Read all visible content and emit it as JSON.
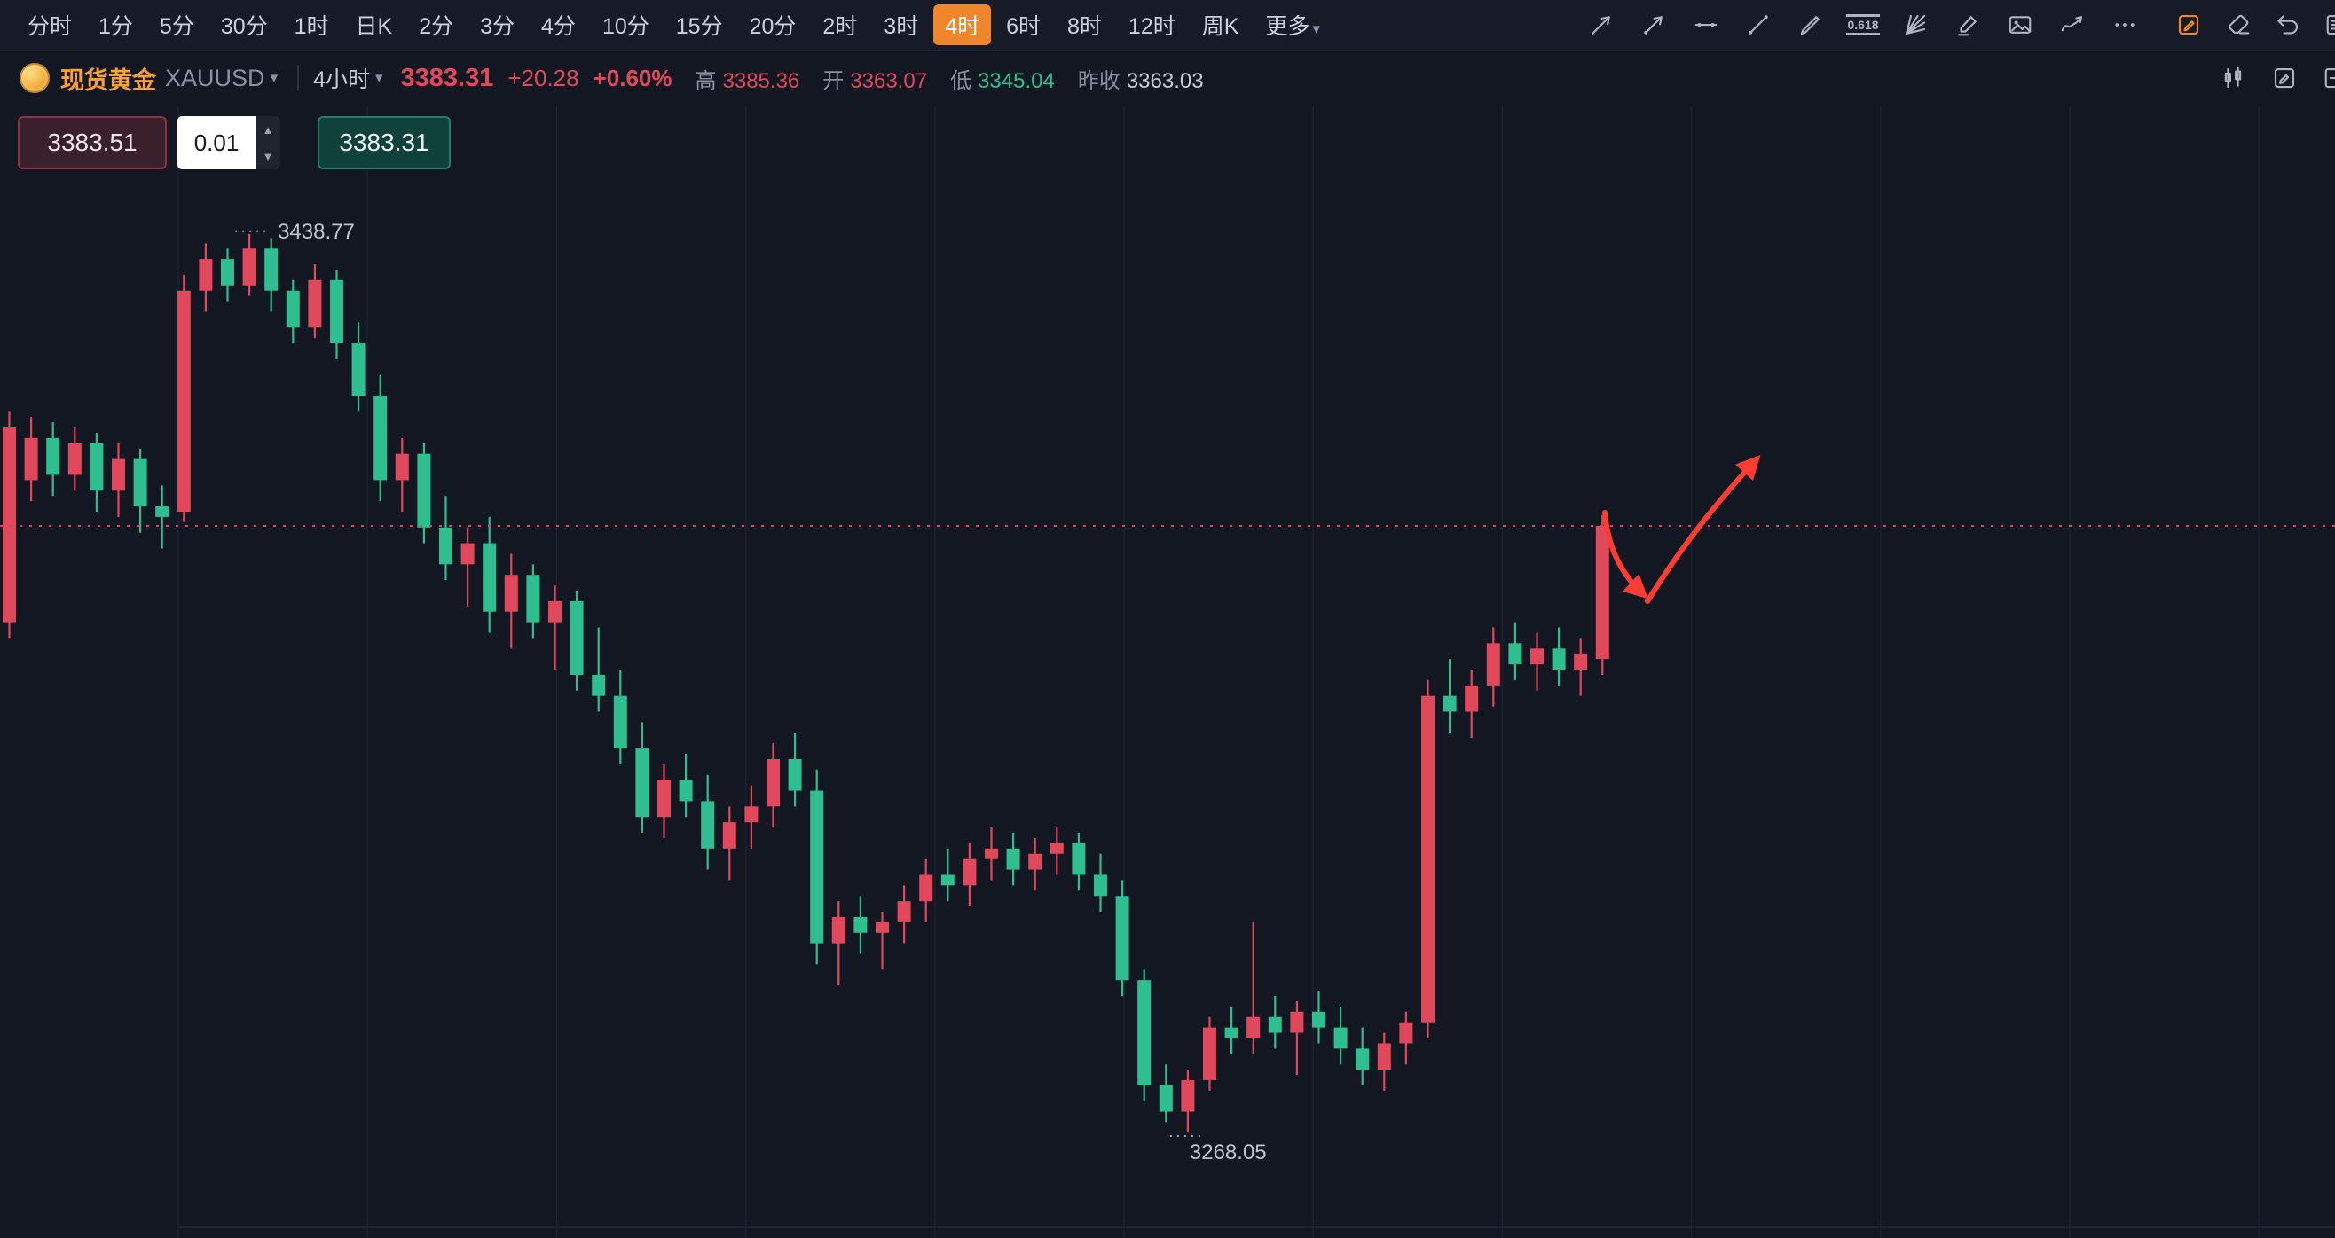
{
  "toolbar": {
    "timeframes": [
      {
        "label": "分时"
      },
      {
        "label": "1分"
      },
      {
        "label": "5分"
      },
      {
        "label": "30分"
      },
      {
        "label": "1时"
      },
      {
        "label": "日K"
      },
      {
        "label": "2分"
      },
      {
        "label": "3分"
      },
      {
        "label": "4分"
      },
      {
        "label": "10分"
      },
      {
        "label": "15分"
      },
      {
        "label": "20分"
      },
      {
        "label": "2时"
      },
      {
        "label": "3时"
      },
      {
        "label": "4时"
      },
      {
        "label": "6时"
      },
      {
        "label": "8时"
      },
      {
        "label": "12时"
      },
      {
        "label": "周K"
      },
      {
        "label": "更多",
        "caret": true
      }
    ],
    "active_timeframe": "4时",
    "tools": [
      {
        "name": "ray-arrow-icon"
      },
      {
        "name": "trend-arrow-icon"
      },
      {
        "name": "horizontal-segment-icon"
      },
      {
        "name": "trend-line-icon"
      },
      {
        "name": "pen-icon"
      },
      {
        "name": "fib-retracement-icon",
        "label": "0.618"
      },
      {
        "name": "gann-fan-icon"
      },
      {
        "name": "marker-icon"
      },
      {
        "name": "image-icon"
      },
      {
        "name": "wave-icon"
      },
      {
        "name": "more-tools-icon"
      }
    ],
    "actions": [
      {
        "name": "edit-square-icon",
        "accent": true
      },
      {
        "name": "eraser-icon"
      },
      {
        "name": "undo-icon"
      },
      {
        "name": "panel-clipped-icon"
      }
    ]
  },
  "ticker": {
    "name": "现货黄金",
    "symbol": "XAUUSD",
    "interval": "4小时",
    "price": "3383.31",
    "change": "+20.28",
    "change_pct": "+0.60%",
    "high_label": "高",
    "high": "3385.36",
    "open_label": "开",
    "open": "3363.07",
    "low_label": "低",
    "low": "3345.04",
    "prev_close_label": "昨收",
    "prev_close": "3363.03",
    "actions": [
      {
        "name": "chart-style-icon"
      },
      {
        "name": "chart-edit-icon"
      },
      {
        "name": "edge-clipped-icon"
      }
    ]
  },
  "trade": {
    "sell_price": "3383.51",
    "quantity": "0.01",
    "buy_price": "3383.31"
  },
  "chart_data": {
    "type": "candlestick",
    "symbol": "XAUUSD",
    "interval": "4h",
    "current_price": 3383.31,
    "high_label": "3438.77",
    "low_label": "3268.05",
    "ylim": [
      3248,
      3463
    ],
    "grid": "vertical-only",
    "colors": {
      "bull": "#e2485c",
      "bear": "#2fbe90",
      "price_line": "#e0445a",
      "grid": "#1c2230",
      "label": "#bfc4cf",
      "annotation": "#ff3c32"
    },
    "candles": [
      [
        3365,
        3405,
        3362,
        3402
      ],
      [
        3392,
        3404,
        3388,
        3400
      ],
      [
        3400,
        3403,
        3389,
        3393
      ],
      [
        3393,
        3402,
        3390,
        3399
      ],
      [
        3399,
        3401,
        3386,
        3390
      ],
      [
        3390,
        3399,
        3385,
        3396
      ],
      [
        3396,
        3398,
        3382,
        3387
      ],
      [
        3387,
        3391,
        3379,
        3385
      ],
      [
        3386,
        3431,
        3384,
        3428
      ],
      [
        3428,
        3437,
        3424,
        3434
      ],
      [
        3434,
        3436,
        3426,
        3429
      ],
      [
        3429,
        3438.77,
        3427,
        3436
      ],
      [
        3436,
        3438,
        3424,
        3428
      ],
      [
        3428,
        3430,
        3418,
        3421
      ],
      [
        3421,
        3433,
        3419,
        3430
      ],
      [
        3430,
        3432,
        3415,
        3418
      ],
      [
        3418,
        3422,
        3405,
        3408
      ],
      [
        3408,
        3412,
        3388,
        3392
      ],
      [
        3392,
        3400,
        3386,
        3397
      ],
      [
        3397,
        3399,
        3380,
        3383
      ],
      [
        3383,
        3389,
        3373,
        3376
      ],
      [
        3376,
        3383,
        3368,
        3380
      ],
      [
        3380,
        3385,
        3363,
        3367
      ],
      [
        3367,
        3378,
        3360,
        3374
      ],
      [
        3374,
        3376,
        3362,
        3365
      ],
      [
        3365,
        3372,
        3356,
        3369
      ],
      [
        3369,
        3371,
        3352,
        3355
      ],
      [
        3355,
        3364,
        3348,
        3351
      ],
      [
        3351,
        3356,
        3338,
        3341
      ],
      [
        3341,
        3346,
        3325,
        3328
      ],
      [
        3328,
        3338,
        3324,
        3335
      ],
      [
        3335,
        3340,
        3328,
        3331
      ],
      [
        3331,
        3336,
        3318,
        3322
      ],
      [
        3322,
        3330,
        3316,
        3327
      ],
      [
        3327,
        3334,
        3322,
        3330
      ],
      [
        3330,
        3342,
        3326,
        3339
      ],
      [
        3339,
        3344,
        3330,
        3333
      ],
      [
        3333,
        3337,
        3300,
        3304
      ],
      [
        3304,
        3312,
        3296,
        3309
      ],
      [
        3309,
        3313,
        3302,
        3306
      ],
      [
        3306,
        3310,
        3299,
        3308
      ],
      [
        3308,
        3315,
        3304,
        3312
      ],
      [
        3312,
        3320,
        3308,
        3317
      ],
      [
        3317,
        3322,
        3312,
        3315
      ],
      [
        3315,
        3323,
        3311,
        3320
      ],
      [
        3320,
        3326,
        3316,
        3322
      ],
      [
        3322,
        3325,
        3315,
        3318
      ],
      [
        3318,
        3324,
        3314,
        3321
      ],
      [
        3321,
        3326,
        3317,
        3323
      ],
      [
        3323,
        3325,
        3314,
        3317
      ],
      [
        3317,
        3321,
        3310,
        3313
      ],
      [
        3313,
        3316,
        3294,
        3297
      ],
      [
        3297,
        3299,
        3274,
        3277
      ],
      [
        3277,
        3281,
        3270,
        3272
      ],
      [
        3272,
        3280,
        3268.05,
        3278
      ],
      [
        3278,
        3290,
        3276,
        3288
      ],
      [
        3288,
        3292,
        3283,
        3286
      ],
      [
        3286,
        3308,
        3283,
        3290
      ],
      [
        3290,
        3294,
        3284,
        3287
      ],
      [
        3287,
        3293,
        3279,
        3291
      ],
      [
        3291,
        3295,
        3285,
        3288
      ],
      [
        3288,
        3292,
        3281,
        3284
      ],
      [
        3284,
        3288,
        3277,
        3280
      ],
      [
        3280,
        3287,
        3276,
        3285
      ],
      [
        3285,
        3291,
        3281,
        3289
      ],
      [
        3289,
        3354,
        3286,
        3351
      ],
      [
        3351,
        3358,
        3344,
        3348
      ],
      [
        3348,
        3356,
        3343,
        3353
      ],
      [
        3353,
        3364,
        3349,
        3361
      ],
      [
        3361,
        3365,
        3354,
        3357
      ],
      [
        3357,
        3363,
        3352,
        3360
      ],
      [
        3360,
        3364,
        3353,
        3356
      ],
      [
        3356,
        3362,
        3351,
        3359
      ],
      [
        3358,
        3385.36,
        3355,
        3383.31
      ]
    ],
    "annotations": [
      {
        "type": "arrow",
        "from": [
          1809,
          578
        ],
        "ctrl": [
          1814,
          634
        ],
        "to": [
          1850,
          668
        ]
      },
      {
        "type": "arrow",
        "from": [
          1857,
          678
        ],
        "ctrl": [
          1906,
          598
        ],
        "to": [
          1977,
          521
        ]
      }
    ]
  }
}
